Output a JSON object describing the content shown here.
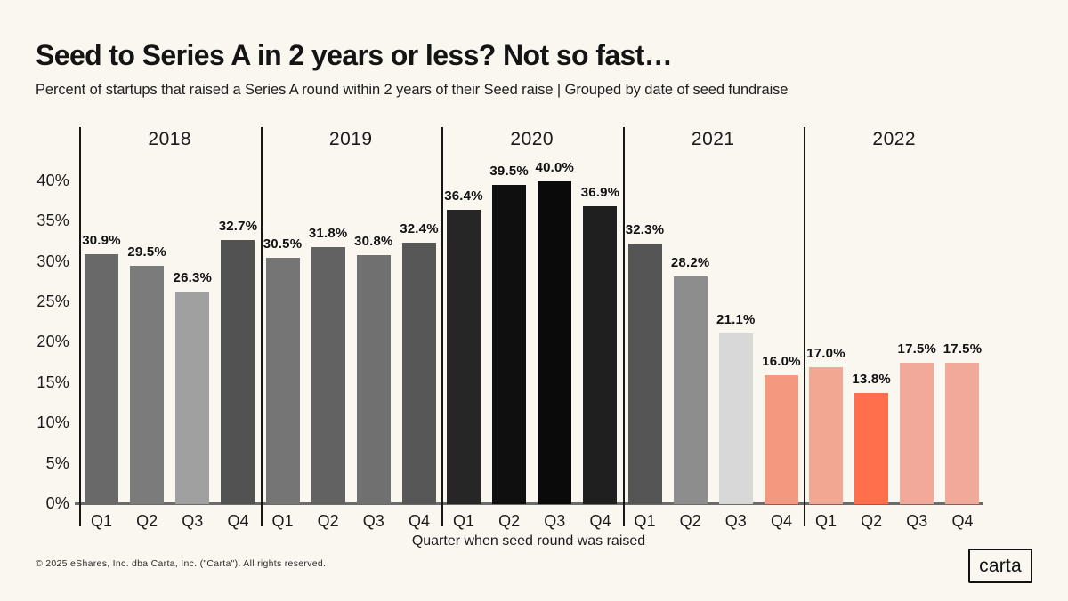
{
  "header": {
    "title": "Seed to Series A in 2 years or less? Not so fast…",
    "subtitle": "Percent of startups that raised a Series A round within 2 years of their Seed raise | Grouped by date of seed fundraise"
  },
  "chart_data": {
    "type": "bar",
    "title": "Seed to Series A in 2 years or less? Not so fast…",
    "subtitle": "Percent of startups that raised a Series A round within 2 years of their Seed raise | Grouped by date of seed fundraise",
    "xlabel": "Quarter when seed round was raised",
    "ylabel": "Percent of startups that raised a Series A round within 2 years of their Seed raise",
    "ylim": [
      0,
      42
    ],
    "grid": false,
    "legend": false,
    "y_ticks": [
      {
        "value": 0,
        "label": "0%"
      },
      {
        "value": 5,
        "label": "5%"
      },
      {
        "value": 10,
        "label": "10%"
      },
      {
        "value": 15,
        "label": "15%"
      },
      {
        "value": 20,
        "label": "20%"
      },
      {
        "value": 25,
        "label": "25%"
      },
      {
        "value": 30,
        "label": "30%"
      },
      {
        "value": 35,
        "label": "35%"
      },
      {
        "value": 40,
        "label": "40%"
      }
    ],
    "groups": [
      {
        "year": "2018",
        "quarters": [
          "Q1",
          "Q2",
          "Q3",
          "Q4"
        ],
        "values": [
          30.9,
          29.5,
          26.3,
          32.7
        ],
        "labels": [
          "30.9%",
          "29.5%",
          "26.3%",
          "32.7%"
        ],
        "colors": [
          "#696969",
          "#7b7b7b",
          "#a0a0a0",
          "#525252"
        ]
      },
      {
        "year": "2019",
        "quarters": [
          "Q1",
          "Q2",
          "Q3",
          "Q4"
        ],
        "values": [
          30.5,
          31.8,
          30.8,
          32.4
        ],
        "labels": [
          "30.5%",
          "31.8%",
          "30.8%",
          "32.4%"
        ],
        "colors": [
          "#757575",
          "#626262",
          "#707070",
          "#575757"
        ]
      },
      {
        "year": "2020",
        "quarters": [
          "Q1",
          "Q2",
          "Q3",
          "Q4"
        ],
        "values": [
          36.4,
          39.5,
          40.0,
          36.9
        ],
        "labels": [
          "36.4%",
          "39.5%",
          "40.0%",
          "36.9%"
        ],
        "colors": [
          "#262626",
          "#0f0f0f",
          "#0a0a0a",
          "#1f1f1f"
        ]
      },
      {
        "year": "2021",
        "quarters": [
          "Q1",
          "Q2",
          "Q3",
          "Q4"
        ],
        "values": [
          32.3,
          28.2,
          21.1,
          16.0
        ],
        "labels": [
          "32.3%",
          "28.2%",
          "21.1%",
          "16.0%"
        ],
        "colors": [
          "#555555",
          "#8d8d8d",
          "#d8d8d8",
          "#f4987f"
        ]
      },
      {
        "year": "2022",
        "quarters": [
          "Q1",
          "Q2",
          "Q3",
          "Q4"
        ],
        "values": [
          17.0,
          13.8,
          17.5,
          17.5
        ],
        "labels": [
          "17.0%",
          "13.8%",
          "17.5%",
          "17.5%"
        ],
        "colors": [
          "#f2a792",
          "#ff6f4b",
          "#f1aa99",
          "#f1aa99"
        ]
      }
    ]
  },
  "colors": {
    "background": "#faf6f0",
    "title_text": "#141414",
    "axis_line": "#6b6b6b",
    "separator_line": "#161616",
    "highlight_low": "#ff6f4b",
    "highlight_high": "#0a0a0a"
  },
  "footer": {
    "copyright": "© 2025 eShares, Inc. dba Carta, Inc. (\"Carta\"). All rights reserved.",
    "logo_text": "carta"
  }
}
